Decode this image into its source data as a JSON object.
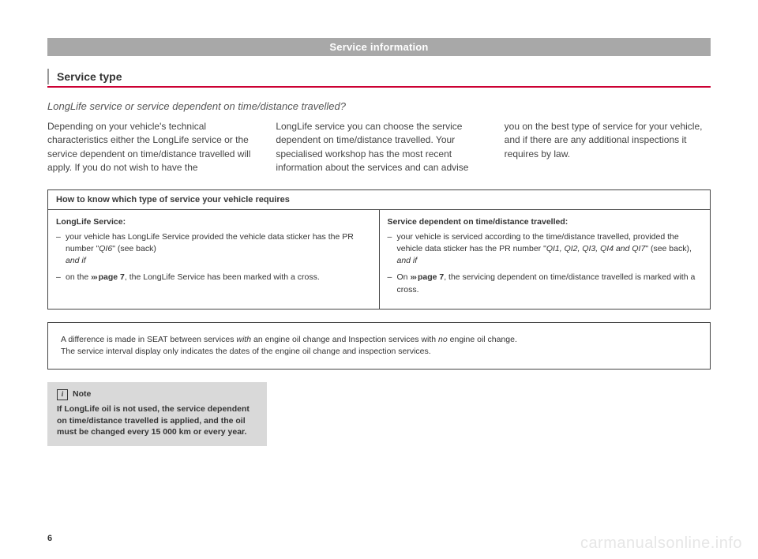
{
  "header": "Service information",
  "section_title": "Service type",
  "subtitle": "LongLife service or service dependent on time/distance travelled?",
  "paragraphs": {
    "col1": "Depending on your vehicle's technical characteristics either the LongLife service or the service dependent on time/distance travelled will apply. If you do not wish to have the",
    "col2": "LongLife service you can choose the service dependent on time/distance travelled. Your specialised workshop has the most recent information about the services and can advise",
    "col3": "you on the best type of service for your vehicle, and if there are any additional inspections it requires by law."
  },
  "table": {
    "header": "How to know which type of service your vehicle requires",
    "left": {
      "title": "LongLife Service:",
      "item1_pre": "your vehicle has LongLife Service provided the vehicle data sticker has the PR number \"",
      "item1_code": "QI6",
      "item1_post": "\" (see back)",
      "and_if": "and if",
      "item2_pre": "on the ",
      "item2_link": "page 7",
      "item2_post": ", the LongLife Service has been marked with a cross."
    },
    "right": {
      "title": "Service dependent on time/distance travelled:",
      "item1_pre": "your vehicle is serviced according to the time/distance travelled, provided the vehicle data sticker has the PR number \"",
      "item1_code": "QI1, QI2, QI3, QI4 and QI7",
      "item1_post": "\" (see back),",
      "and_if": "and if",
      "item2_pre": "On ",
      "item2_link": "page 7",
      "item2_post": ", the servicing dependent on time/distance travelled is marked with a cross."
    }
  },
  "wide_box": {
    "line1_a": "A difference is made in SEAT between services ",
    "line1_i1": "with",
    "line1_b": " an engine oil change and Inspection services with ",
    "line1_i2": "no",
    "line1_c": " engine oil change.",
    "line2": "The service interval display only indicates the dates of the engine oil change and inspection services."
  },
  "note": {
    "label": "Note",
    "body": "If LongLife oil is not used, the service dependent on time/distance travelled is applied, and the oil must be changed every 15 000 km or every year."
  },
  "page_number": "6",
  "watermark": "carmanualsonline.info"
}
